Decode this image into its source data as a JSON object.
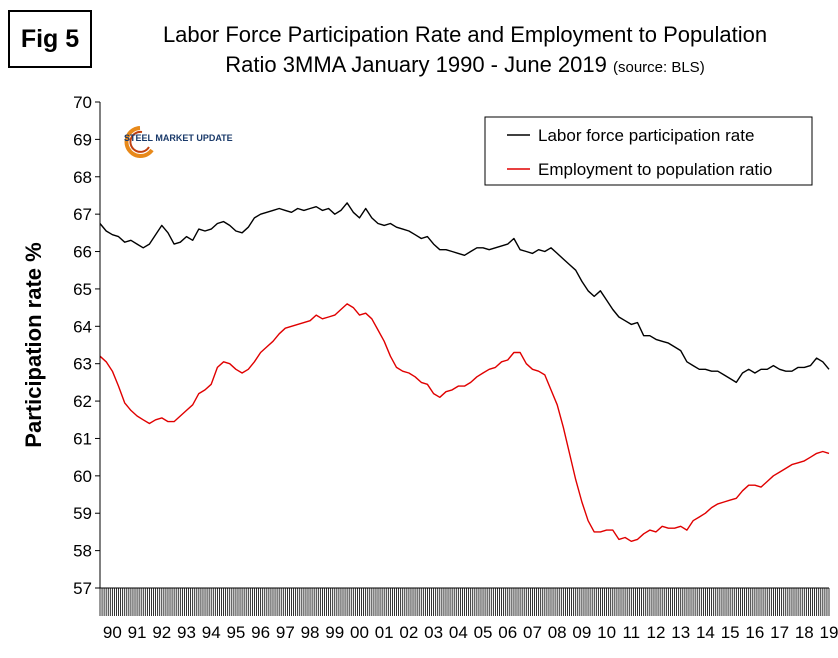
{
  "figure_label": "Fig 5",
  "title_main": "Labor Force Participation Rate and Employment to Population",
  "title_line2": "Ratio 3MMA January 1990 - June 2019",
  "title_source": "(source: BLS)",
  "logo_text": "STEEL MARKET UPDATE",
  "colors": {
    "lfpr": "#000000",
    "epop": "#e00000",
    "logo_arc": "#e8891a"
  },
  "chart_data": {
    "type": "line",
    "title": "Labor Force Participation Rate and Employment to Population Ratio 3MMA January 1990 - June 2019 (source: BLS)",
    "ylabel": "Participation rate %",
    "xlabel": "",
    "ylim": [
      57,
      70
    ],
    "yticks": [
      57,
      58,
      59,
      60,
      61,
      62,
      63,
      64,
      65,
      66,
      67,
      68,
      69,
      70
    ],
    "xlim": [
      1990,
      2019.5
    ],
    "xtick_labels": [
      "90",
      "91",
      "92",
      "93",
      "94",
      "95",
      "96",
      "97",
      "98",
      "99",
      "00",
      "01",
      "02",
      "03",
      "04",
      "05",
      "06",
      "07",
      "08",
      "09",
      "10",
      "11",
      "12",
      "13",
      "14",
      "15",
      "16",
      "17",
      "18",
      "19"
    ],
    "grid": false,
    "legend_position": "top-right",
    "series": [
      {
        "name": "Labor force participation rate",
        "color": "#000000",
        "points": [
          [
            1990.0,
            66.75
          ],
          [
            1990.25,
            66.55
          ],
          [
            1990.5,
            66.45
          ],
          [
            1990.75,
            66.4
          ],
          [
            1991.0,
            66.25
          ],
          [
            1991.25,
            66.3
          ],
          [
            1991.5,
            66.2
          ],
          [
            1991.75,
            66.1
          ],
          [
            1992.0,
            66.2
          ],
          [
            1992.25,
            66.45
          ],
          [
            1992.5,
            66.7
          ],
          [
            1992.75,
            66.5
          ],
          [
            1993.0,
            66.2
          ],
          [
            1993.25,
            66.25
          ],
          [
            1993.5,
            66.4
          ],
          [
            1993.75,
            66.3
          ],
          [
            1994.0,
            66.6
          ],
          [
            1994.25,
            66.55
          ],
          [
            1994.5,
            66.6
          ],
          [
            1994.75,
            66.75
          ],
          [
            1995.0,
            66.8
          ],
          [
            1995.25,
            66.7
          ],
          [
            1995.5,
            66.55
          ],
          [
            1995.75,
            66.5
          ],
          [
            1996.0,
            66.65
          ],
          [
            1996.25,
            66.9
          ],
          [
            1996.5,
            67.0
          ],
          [
            1996.75,
            67.05
          ],
          [
            1997.0,
            67.1
          ],
          [
            1997.25,
            67.15
          ],
          [
            1997.5,
            67.1
          ],
          [
            1997.75,
            67.05
          ],
          [
            1998.0,
            67.15
          ],
          [
            1998.25,
            67.1
          ],
          [
            1998.5,
            67.15
          ],
          [
            1998.75,
            67.2
          ],
          [
            1999.0,
            67.1
          ],
          [
            1999.25,
            67.15
          ],
          [
            1999.5,
            67.0
          ],
          [
            1999.75,
            67.1
          ],
          [
            2000.0,
            67.3
          ],
          [
            2000.25,
            67.05
          ],
          [
            2000.5,
            66.9
          ],
          [
            2000.75,
            67.15
          ],
          [
            2001.0,
            66.9
          ],
          [
            2001.25,
            66.75
          ],
          [
            2001.5,
            66.7
          ],
          [
            2001.75,
            66.75
          ],
          [
            2002.0,
            66.65
          ],
          [
            2002.25,
            66.6
          ],
          [
            2002.5,
            66.55
          ],
          [
            2002.75,
            66.45
          ],
          [
            2003.0,
            66.35
          ],
          [
            2003.25,
            66.4
          ],
          [
            2003.5,
            66.2
          ],
          [
            2003.75,
            66.05
          ],
          [
            2004.0,
            66.05
          ],
          [
            2004.25,
            66.0
          ],
          [
            2004.5,
            65.95
          ],
          [
            2004.75,
            65.9
          ],
          [
            2005.0,
            66.0
          ],
          [
            2005.25,
            66.1
          ],
          [
            2005.5,
            66.1
          ],
          [
            2005.75,
            66.05
          ],
          [
            2006.0,
            66.1
          ],
          [
            2006.25,
            66.15
          ],
          [
            2006.5,
            66.2
          ],
          [
            2006.75,
            66.35
          ],
          [
            2007.0,
            66.05
          ],
          [
            2007.25,
            66.0
          ],
          [
            2007.5,
            65.95
          ],
          [
            2007.75,
            66.05
          ],
          [
            2008.0,
            66.0
          ],
          [
            2008.25,
            66.1
          ],
          [
            2008.5,
            65.95
          ],
          [
            2008.75,
            65.8
          ],
          [
            2009.0,
            65.65
          ],
          [
            2009.25,
            65.5
          ],
          [
            2009.5,
            65.2
          ],
          [
            2009.75,
            64.95
          ],
          [
            2010.0,
            64.8
          ],
          [
            2010.25,
            64.95
          ],
          [
            2010.5,
            64.7
          ],
          [
            2010.75,
            64.45
          ],
          [
            2011.0,
            64.25
          ],
          [
            2011.25,
            64.15
          ],
          [
            2011.5,
            64.05
          ],
          [
            2011.75,
            64.1
          ],
          [
            2012.0,
            63.75
          ],
          [
            2012.25,
            63.75
          ],
          [
            2012.5,
            63.65
          ],
          [
            2012.75,
            63.6
          ],
          [
            2013.0,
            63.55
          ],
          [
            2013.25,
            63.45
          ],
          [
            2013.5,
            63.35
          ],
          [
            2013.75,
            63.05
          ],
          [
            2014.0,
            62.95
          ],
          [
            2014.25,
            62.85
          ],
          [
            2014.5,
            62.85
          ],
          [
            2014.75,
            62.8
          ],
          [
            2015.0,
            62.8
          ],
          [
            2015.25,
            62.7
          ],
          [
            2015.5,
            62.6
          ],
          [
            2015.75,
            62.5
          ],
          [
            2016.0,
            62.75
          ],
          [
            2016.25,
            62.85
          ],
          [
            2016.5,
            62.75
          ],
          [
            2016.75,
            62.85
          ],
          [
            2017.0,
            62.85
          ],
          [
            2017.25,
            62.95
          ],
          [
            2017.5,
            62.85
          ],
          [
            2017.75,
            62.8
          ],
          [
            2018.0,
            62.8
          ],
          [
            2018.25,
            62.9
          ],
          [
            2018.5,
            62.9
          ],
          [
            2018.75,
            62.95
          ],
          [
            2019.0,
            63.15
          ],
          [
            2019.25,
            63.05
          ],
          [
            2019.5,
            62.85
          ]
        ]
      },
      {
        "name": "Employment to population ratio",
        "color": "#e00000",
        "points": [
          [
            1990.0,
            63.2
          ],
          [
            1990.25,
            63.05
          ],
          [
            1990.5,
            62.8
          ],
          [
            1990.75,
            62.4
          ],
          [
            1991.0,
            61.95
          ],
          [
            1991.25,
            61.75
          ],
          [
            1991.5,
            61.6
          ],
          [
            1991.75,
            61.5
          ],
          [
            1992.0,
            61.4
          ],
          [
            1992.25,
            61.5
          ],
          [
            1992.5,
            61.55
          ],
          [
            1992.75,
            61.45
          ],
          [
            1993.0,
            61.45
          ],
          [
            1993.25,
            61.6
          ],
          [
            1993.5,
            61.75
          ],
          [
            1993.75,
            61.9
          ],
          [
            1994.0,
            62.2
          ],
          [
            1994.25,
            62.3
          ],
          [
            1994.5,
            62.45
          ],
          [
            1994.75,
            62.9
          ],
          [
            1995.0,
            63.05
          ],
          [
            1995.25,
            63.0
          ],
          [
            1995.5,
            62.85
          ],
          [
            1995.75,
            62.75
          ],
          [
            1996.0,
            62.85
          ],
          [
            1996.25,
            63.05
          ],
          [
            1996.5,
            63.3
          ],
          [
            1996.75,
            63.45
          ],
          [
            1997.0,
            63.6
          ],
          [
            1997.25,
            63.8
          ],
          [
            1997.5,
            63.95
          ],
          [
            1997.75,
            64.0
          ],
          [
            1998.0,
            64.05
          ],
          [
            1998.25,
            64.1
          ],
          [
            1998.5,
            64.15
          ],
          [
            1998.75,
            64.3
          ],
          [
            1999.0,
            64.2
          ],
          [
            1999.25,
            64.25
          ],
          [
            1999.5,
            64.3
          ],
          [
            1999.75,
            64.45
          ],
          [
            2000.0,
            64.6
          ],
          [
            2000.25,
            64.5
          ],
          [
            2000.5,
            64.3
          ],
          [
            2000.75,
            64.35
          ],
          [
            2001.0,
            64.2
          ],
          [
            2001.25,
            63.9
          ],
          [
            2001.5,
            63.6
          ],
          [
            2001.75,
            63.2
          ],
          [
            2002.0,
            62.9
          ],
          [
            2002.25,
            62.8
          ],
          [
            2002.5,
            62.75
          ],
          [
            2002.75,
            62.65
          ],
          [
            2003.0,
            62.5
          ],
          [
            2003.25,
            62.45
          ],
          [
            2003.5,
            62.2
          ],
          [
            2003.75,
            62.1
          ],
          [
            2004.0,
            62.25
          ],
          [
            2004.25,
            62.3
          ],
          [
            2004.5,
            62.4
          ],
          [
            2004.75,
            62.4
          ],
          [
            2005.0,
            62.5
          ],
          [
            2005.25,
            62.65
          ],
          [
            2005.5,
            62.75
          ],
          [
            2005.75,
            62.85
          ],
          [
            2006.0,
            62.9
          ],
          [
            2006.25,
            63.05
          ],
          [
            2006.5,
            63.1
          ],
          [
            2006.75,
            63.3
          ],
          [
            2007.0,
            63.3
          ],
          [
            2007.25,
            63.0
          ],
          [
            2007.5,
            62.85
          ],
          [
            2007.75,
            62.8
          ],
          [
            2008.0,
            62.7
          ],
          [
            2008.25,
            62.3
          ],
          [
            2008.5,
            61.9
          ],
          [
            2008.75,
            61.3
          ],
          [
            2009.0,
            60.6
          ],
          [
            2009.25,
            59.9
          ],
          [
            2009.5,
            59.3
          ],
          [
            2009.75,
            58.8
          ],
          [
            2010.0,
            58.5
          ],
          [
            2010.25,
            58.5
          ],
          [
            2010.5,
            58.55
          ],
          [
            2010.75,
            58.55
          ],
          [
            2011.0,
            58.3
          ],
          [
            2011.25,
            58.35
          ],
          [
            2011.5,
            58.25
          ],
          [
            2011.75,
            58.3
          ],
          [
            2012.0,
            58.45
          ],
          [
            2012.25,
            58.55
          ],
          [
            2012.5,
            58.5
          ],
          [
            2012.75,
            58.65
          ],
          [
            2013.0,
            58.6
          ],
          [
            2013.25,
            58.6
          ],
          [
            2013.5,
            58.65
          ],
          [
            2013.75,
            58.55
          ],
          [
            2014.0,
            58.8
          ],
          [
            2014.25,
            58.9
          ],
          [
            2014.5,
            59.0
          ],
          [
            2014.75,
            59.15
          ],
          [
            2015.0,
            59.25
          ],
          [
            2015.25,
            59.3
          ],
          [
            2015.5,
            59.35
          ],
          [
            2015.75,
            59.4
          ],
          [
            2016.0,
            59.6
          ],
          [
            2016.25,
            59.75
          ],
          [
            2016.5,
            59.75
          ],
          [
            2016.75,
            59.7
          ],
          [
            2017.0,
            59.85
          ],
          [
            2017.25,
            60.0
          ],
          [
            2017.5,
            60.1
          ],
          [
            2017.75,
            60.2
          ],
          [
            2018.0,
            60.3
          ],
          [
            2018.25,
            60.35
          ],
          [
            2018.5,
            60.4
          ],
          [
            2018.75,
            60.5
          ],
          [
            2019.0,
            60.6
          ],
          [
            2019.25,
            60.65
          ],
          [
            2019.5,
            60.6
          ]
        ]
      }
    ]
  }
}
